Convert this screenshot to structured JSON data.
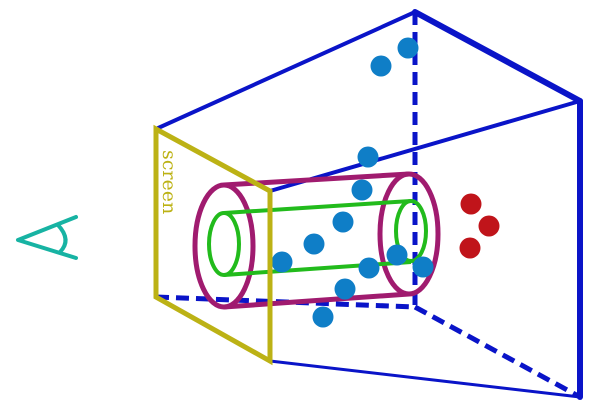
{
  "diagram": {
    "screen_label": "screen",
    "colors": {
      "frustum": "#0a14c8",
      "screen": "#bcb215",
      "eye": "#17b3a3",
      "outer_cylinder": "#a01b6f",
      "inner_cylinder": "#22bb1c",
      "blue_points": "#0f7ec7",
      "red_points": "#c0141a"
    },
    "icons": {
      "viewer": "eye-icon"
    }
  }
}
